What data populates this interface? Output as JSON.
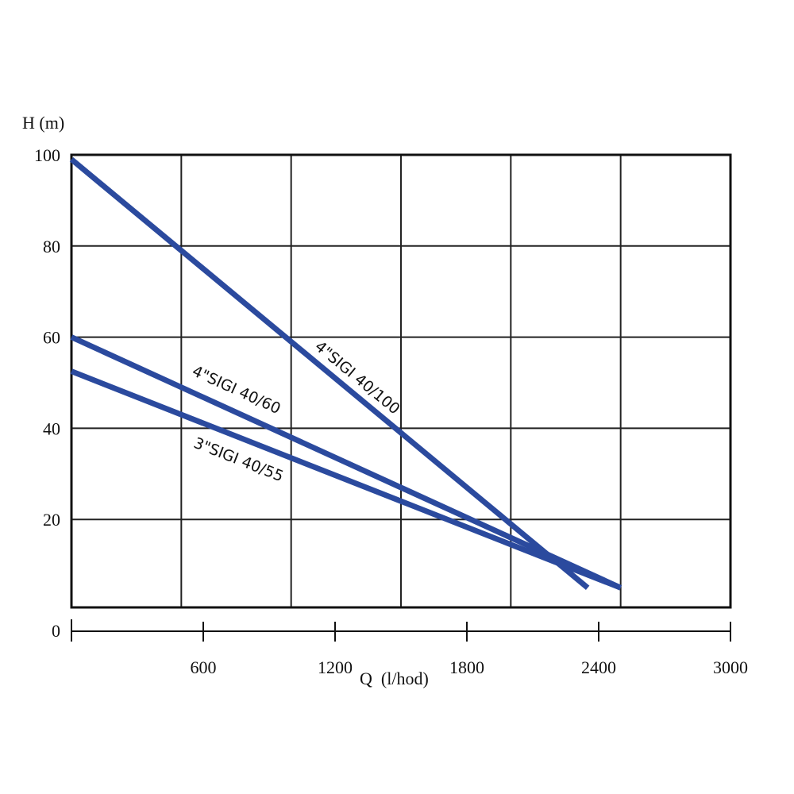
{
  "chart_data": {
    "type": "line",
    "title": "",
    "xlabel": "Q  (l/hod)",
    "ylabel": "H (m)",
    "xlim": [
      0,
      3000
    ],
    "ylim": [
      0,
      100
    ],
    "x_ticks": [
      0,
      600,
      1200,
      1800,
      2400,
      3000
    ],
    "x_tick_labels": [
      "600",
      "1200",
      "1800",
      "2400",
      "3000"
    ],
    "y_ticks": [
      0,
      20,
      40,
      60,
      80,
      100
    ],
    "y_tick_labels": [
      "0",
      "20",
      "40",
      "60",
      "80",
      "100"
    ],
    "grid": true,
    "grid_x_step": 500,
    "grid_y_step": 20,
    "line_color": "#2b4a9e",
    "series": [
      {
        "name": "4\"SIGI 40/100",
        "points": [
          [
            0,
            99
          ],
          [
            2350,
            5
          ]
        ],
        "label_at": [
          1300,
          51
        ]
      },
      {
        "name": "4\"SIGI 40/60",
        "points": [
          [
            0,
            60
          ],
          [
            2500,
            5
          ]
        ],
        "label_at": [
          750,
          48.3
        ]
      },
      {
        "name": "3\"SIGI 40/55",
        "points": [
          [
            0,
            52.5
          ],
          [
            2500,
            5
          ]
        ],
        "label_at": [
          760,
          33
        ]
      }
    ]
  }
}
